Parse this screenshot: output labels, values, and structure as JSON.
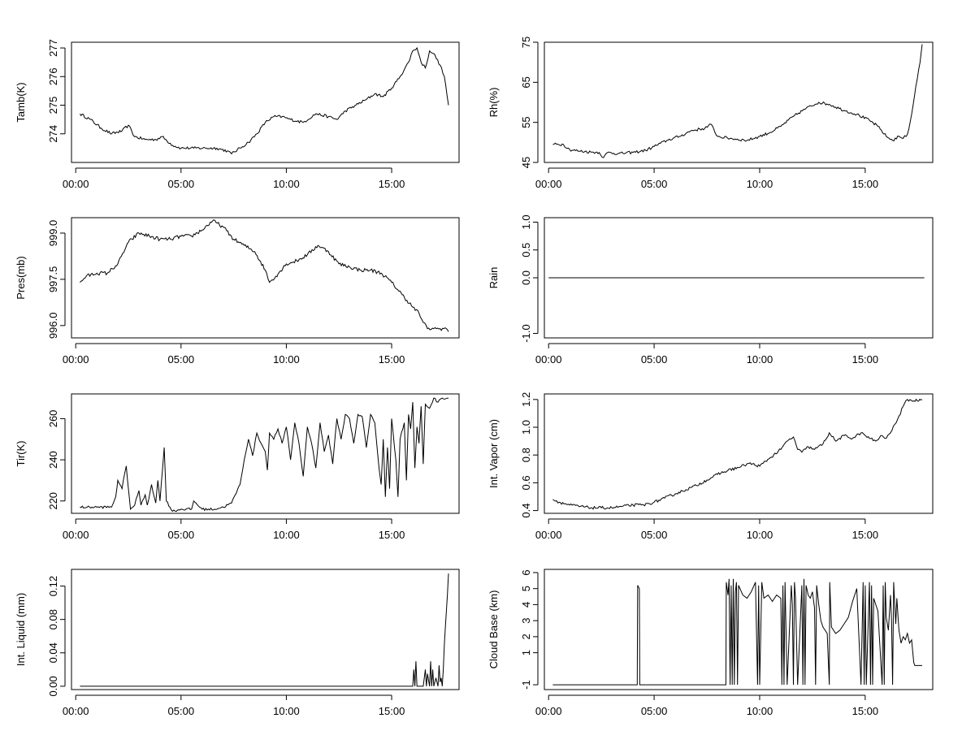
{
  "chart_data": [
    {
      "type": "line",
      "ylabel": "Tamb(K)",
      "xlabel": "",
      "x_ticks": [
        "00:00",
        "05:00",
        "10:00",
        "15:00"
      ],
      "y_ticks": [
        "274",
        "275",
        "276",
        "277"
      ],
      "xlim": [
        -0.2,
        18.2
      ],
      "ylim": [
        273.0,
        277.2
      ],
      "noise": 0.05,
      "series": [
        {
          "x": [
            0.2,
            0.7,
            1.2,
            1.7,
            2.2,
            2.5,
            2.8,
            3.3,
            3.8,
            4.1,
            4.6,
            5.0,
            5.6,
            6.2,
            6.7,
            7.2,
            7.4,
            7.8,
            8.2,
            8.6,
            9.0,
            9.4,
            9.8,
            10.2,
            10.8,
            11.4,
            12.0,
            12.4,
            12.8,
            13.3,
            13.8,
            14.2,
            14.6,
            15.0,
            15.4,
            15.8,
            16.0,
            16.2,
            16.4,
            16.6,
            16.8,
            17.0,
            17.3,
            17.5,
            17.7
          ],
          "y": [
            274.7,
            274.5,
            274.2,
            274.0,
            274.1,
            274.3,
            273.9,
            273.8,
            273.8,
            273.9,
            273.6,
            273.5,
            273.5,
            273.5,
            273.5,
            273.4,
            273.3,
            273.5,
            273.7,
            274.0,
            274.4,
            274.6,
            274.6,
            274.5,
            274.4,
            274.7,
            274.6,
            274.5,
            274.8,
            275.0,
            275.2,
            275.4,
            275.3,
            275.6,
            276.0,
            276.5,
            276.9,
            277.0,
            276.5,
            276.3,
            276.9,
            276.8,
            276.4,
            276.0,
            275.0
          ]
        }
      ]
    },
    {
      "type": "line",
      "ylabel": "Rh(%)",
      "xlabel": "",
      "x_ticks": [
        "00:00",
        "05:00",
        "10:00",
        "15:00"
      ],
      "y_ticks": [
        "45",
        "55",
        "65",
        "75"
      ],
      "xlim": [
        -0.2,
        18.2
      ],
      "ylim": [
        45,
        75
      ],
      "noise": 0.35,
      "series": [
        {
          "x": [
            0.2,
            0.7,
            1.0,
            1.5,
            2.0,
            2.4,
            2.6,
            2.8,
            3.3,
            4.0,
            4.6,
            5.0,
            5.6,
            6.2,
            6.8,
            7.4,
            7.7,
            8.0,
            8.6,
            9.4,
            10.0,
            10.5,
            11.0,
            11.6,
            12.2,
            12.8,
            13.3,
            14.0,
            14.6,
            15.2,
            15.6,
            16.0,
            16.3,
            16.6,
            16.8,
            17.0,
            17.2,
            17.4,
            17.6,
            17.7
          ],
          "y": [
            49.5,
            49.5,
            48.2,
            47.8,
            47.6,
            47.5,
            46.2,
            47.5,
            47.2,
            47.5,
            48.0,
            49.0,
            50.5,
            51.5,
            53.0,
            53.5,
            54.5,
            51.5,
            51.0,
            50.5,
            51.5,
            52.5,
            54.0,
            56.5,
            58.5,
            60.0,
            59.5,
            58.0,
            57.0,
            55.5,
            54.0,
            51.5,
            50.5,
            51.5,
            51.0,
            52.0,
            57.0,
            64.0,
            70.0,
            74.5
          ]
        }
      ]
    },
    {
      "type": "line",
      "ylabel": "Pres(mb)",
      "xlabel": "",
      "x_ticks": [
        "00:00",
        "05:00",
        "10:00",
        "15:00"
      ],
      "y_ticks": [
        "996.0",
        "997.5",
        "999.0"
      ],
      "xlim": [
        -0.2,
        18.2
      ],
      "ylim": [
        995.6,
        999.5
      ],
      "noise": 0.06,
      "series": [
        {
          "x": [
            0.2,
            0.5,
            1.0,
            1.5,
            2.0,
            2.5,
            3.0,
            3.5,
            4.0,
            4.5,
            5.0,
            5.5,
            6.0,
            6.5,
            7.0,
            7.5,
            8.0,
            8.5,
            9.0,
            9.2,
            9.5,
            10.0,
            10.5,
            11.0,
            11.5,
            12.0,
            12.5,
            13.0,
            13.5,
            14.0,
            14.5,
            15.0,
            15.5,
            16.0,
            16.3,
            16.5,
            16.7,
            17.0,
            17.3,
            17.6,
            17.7
          ],
          "y": [
            997.4,
            997.6,
            997.7,
            997.7,
            998.0,
            998.7,
            999.0,
            998.9,
            998.8,
            998.8,
            998.9,
            998.9,
            999.1,
            999.4,
            999.2,
            998.8,
            998.6,
            998.4,
            997.8,
            997.4,
            997.6,
            998.0,
            998.1,
            998.3,
            998.6,
            998.4,
            998.0,
            997.9,
            997.8,
            997.8,
            997.7,
            997.4,
            997.0,
            996.6,
            996.4,
            996.1,
            995.9,
            995.9,
            995.9,
            995.9,
            995.8
          ]
        }
      ]
    },
    {
      "type": "line",
      "ylabel": "Rain",
      "xlabel": "",
      "x_ticks": [
        "00:00",
        "05:00",
        "10:00",
        "15:00"
      ],
      "y_ticks": [
        "-1.0",
        "0.0",
        "0.5",
        "1.0"
      ],
      "xlim": [
        -0.2,
        18.2
      ],
      "ylim": [
        -1.08,
        1.08
      ],
      "noise": 0,
      "series": [
        {
          "x": [
            0.0,
            17.8
          ],
          "y": [
            0,
            0
          ]
        }
      ]
    },
    {
      "type": "line",
      "ylabel": "Tir(K)",
      "xlabel": "",
      "x_ticks": [
        "00:00",
        "05:00",
        "10:00",
        "15:00"
      ],
      "y_ticks": [
        "220",
        "240",
        "260"
      ],
      "xlim": [
        -0.2,
        18.2
      ],
      "ylim": [
        214,
        272
      ],
      "noise": 0.6,
      "series": [
        {
          "x": [
            0.2,
            1.0,
            1.7,
            1.9,
            2.0,
            2.2,
            2.4,
            2.6,
            2.8,
            3.0,
            3.1,
            3.3,
            3.4,
            3.6,
            3.8,
            3.9,
            4.0,
            4.2,
            4.3,
            4.6,
            5.0,
            5.5,
            5.6,
            6.0,
            6.6,
            7.0,
            7.4,
            7.8,
            8.0,
            8.2,
            8.4,
            8.6,
            8.8,
            9.0,
            9.1,
            9.2,
            9.4,
            9.6,
            9.8,
            10.0,
            10.2,
            10.4,
            10.6,
            10.8,
            11.0,
            11.2,
            11.4,
            11.6,
            11.8,
            12.0,
            12.2,
            12.4,
            12.6,
            12.8,
            13.0,
            13.2,
            13.4,
            13.6,
            13.8,
            14.0,
            14.2,
            14.4,
            14.5,
            14.6,
            14.7,
            14.8,
            14.9,
            15.0,
            15.2,
            15.3,
            15.4,
            15.6,
            15.7,
            15.8,
            15.9,
            16.0,
            16.1,
            16.2,
            16.3,
            16.4,
            16.5,
            16.6,
            16.8,
            17.0,
            17.2,
            17.4,
            17.7
          ],
          "y": [
            217,
            217,
            217,
            222,
            230,
            226,
            237,
            216,
            218,
            225,
            218,
            223,
            218,
            228,
            219,
            230,
            220,
            246,
            220,
            215,
            216,
            216,
            220,
            216,
            216,
            217,
            219,
            228,
            240,
            250,
            242,
            253,
            248,
            244,
            235,
            253,
            250,
            255,
            248,
            256,
            240,
            258,
            248,
            232,
            256,
            248,
            236,
            258,
            244,
            252,
            238,
            260,
            250,
            262,
            260,
            248,
            262,
            261,
            246,
            262,
            258,
            236,
            228,
            250,
            222,
            246,
            226,
            260,
            240,
            222,
            250,
            258,
            230,
            262,
            255,
            268,
            236,
            256,
            248,
            266,
            238,
            267,
            265,
            270,
            268,
            270,
            270
          ]
        }
      ]
    },
    {
      "type": "line",
      "ylabel": "Int. Vapor (cm)",
      "xlabel": "",
      "x_ticks": [
        "00:00",
        "05:00",
        "10:00",
        "15:00"
      ],
      "y_ticks": [
        "0.4",
        "0.6",
        "0.8",
        "1.0",
        "1.2"
      ],
      "xlim": [
        -0.2,
        18.2
      ],
      "ylim": [
        0.38,
        1.24
      ],
      "noise": 0.01,
      "series": [
        {
          "x": [
            0.2,
            0.5,
            1.0,
            1.5,
            2.0,
            2.5,
            3.0,
            3.5,
            4.0,
            4.5,
            5.0,
            5.5,
            6.0,
            6.5,
            7.0,
            7.5,
            8.0,
            8.5,
            9.0,
            9.5,
            10.0,
            10.5,
            11.0,
            11.3,
            11.6,
            11.8,
            12.0,
            12.3,
            12.6,
            13.0,
            13.3,
            13.6,
            14.0,
            14.4,
            14.8,
            15.2,
            15.5,
            15.8,
            16.0,
            16.2,
            16.4,
            16.6,
            16.8,
            17.0,
            17.3,
            17.7
          ],
          "y": [
            0.48,
            0.46,
            0.44,
            0.43,
            0.42,
            0.42,
            0.42,
            0.43,
            0.44,
            0.44,
            0.46,
            0.49,
            0.52,
            0.55,
            0.58,
            0.62,
            0.66,
            0.69,
            0.71,
            0.74,
            0.72,
            0.78,
            0.84,
            0.9,
            0.93,
            0.84,
            0.82,
            0.86,
            0.84,
            0.88,
            0.96,
            0.9,
            0.94,
            0.92,
            0.96,
            0.92,
            0.9,
            0.94,
            0.92,
            0.96,
            1.02,
            1.08,
            1.15,
            1.2,
            1.19,
            1.2
          ]
        }
      ]
    },
    {
      "type": "line",
      "ylabel": "Int. Liquid (mm)",
      "xlabel": "",
      "x_ticks": [
        "00:00",
        "05:00",
        "10:00",
        "15:00"
      ],
      "y_ticks": [
        "0.00",
        "0.04",
        "0.08",
        "0.12"
      ],
      "xlim": [
        -0.2,
        18.2
      ],
      "ylim": [
        -0.004,
        0.14
      ],
      "noise": 0,
      "series": [
        {
          "x": [
            0.2,
            16.0,
            16.05,
            16.1,
            16.15,
            16.2,
            16.5,
            16.6,
            16.65,
            16.7,
            16.8,
            16.85,
            16.9,
            16.95,
            17.0,
            17.1,
            17.2,
            17.25,
            17.3,
            17.35,
            17.4,
            17.45,
            17.5,
            17.55,
            17.6,
            17.65,
            17.7
          ],
          "y": [
            0,
            0,
            0.02,
            0.0,
            0.03,
            0,
            0,
            0.02,
            0,
            0.015,
            0,
            0.03,
            0,
            0.02,
            0,
            0.01,
            0,
            0.025,
            0.005,
            0.01,
            0.0,
            0.02,
            0.05,
            0.07,
            0.09,
            0.11,
            0.135
          ]
        }
      ]
    },
    {
      "type": "line",
      "ylabel": "Cloud Base (km)",
      "xlabel": "",
      "x_ticks": [
        "00:00",
        "05:00",
        "10:00",
        "15:00"
      ],
      "y_ticks": [
        "-1",
        "1",
        "2",
        "3",
        "4",
        "5",
        "6"
      ],
      "xlim": [
        -0.2,
        18.2
      ],
      "ylim": [
        -1.3,
        6.2
      ],
      "noise": 0,
      "series": [
        {
          "x": [
            0.2,
            4.2,
            4.22,
            4.3,
            4.32,
            8.4,
            8.42,
            8.5,
            8.55,
            8.6,
            8.65,
            8.7,
            8.75,
            8.8,
            8.85,
            8.9,
            8.95,
            9.0,
            9.2,
            9.4,
            9.6,
            9.8,
            9.9,
            9.95,
            10.0,
            10.1,
            10.2,
            10.4,
            10.6,
            10.8,
            11.0,
            11.05,
            11.1,
            11.15,
            11.2,
            11.3,
            11.5,
            11.55,
            11.6,
            11.65,
            11.7,
            11.8,
            12.0,
            12.05,
            12.1,
            12.15,
            12.2,
            12.3,
            12.4,
            12.5,
            12.6,
            12.65,
            12.7,
            12.8,
            12.9,
            13.0,
            13.2,
            13.3,
            13.32,
            13.4,
            13.6,
            13.8,
            14.0,
            14.2,
            14.4,
            14.6,
            14.8,
            14.9,
            14.95,
            15.0,
            15.05,
            15.2,
            15.25,
            15.3,
            15.35,
            15.4,
            15.6,
            15.8,
            15.85,
            15.9,
            15.95,
            16.0,
            16.1,
            16.2,
            16.25,
            16.3,
            16.35,
            16.4,
            16.45,
            16.5,
            16.6,
            16.7,
            16.8,
            16.9,
            17.0,
            17.1,
            17.2,
            17.3,
            17.35,
            17.5,
            17.7
          ],
          "y": [
            -1,
            -1,
            5.2,
            5.0,
            -1,
            -1,
            5.4,
            4.6,
            5.6,
            -1,
            5.2,
            -1,
            5.6,
            -1,
            4.8,
            5.4,
            -1,
            5.2,
            4.6,
            4.4,
            4.8,
            5.4,
            -1,
            5.2,
            -1,
            5.4,
            4.4,
            4.6,
            4.2,
            4.6,
            4.4,
            -1,
            5.2,
            -1,
            5.4,
            -1,
            5.2,
            4.0,
            -1,
            5.4,
            4.4,
            -1,
            5.2,
            -1,
            5.6,
            -1,
            5.2,
            4.6,
            4.4,
            4.8,
            3.8,
            -1,
            5.2,
            4.0,
            3.0,
            2.6,
            2.2,
            -1,
            5.4,
            2.6,
            2.2,
            2.4,
            2.8,
            3.2,
            4.2,
            5.0,
            -1,
            5.4,
            -1,
            5.2,
            -1,
            5.4,
            -1,
            5.2,
            -1,
            4.4,
            3.6,
            -1,
            5.2,
            -1,
            5.4,
            3.2,
            2.4,
            4.6,
            3.0,
            -1,
            5.4,
            4.0,
            2.8,
            4.4,
            2.4,
            1.6,
            2.0,
            1.8,
            2.2,
            1.6,
            1.8,
            0.4,
            0.2,
            0.2,
            0.2
          ]
        }
      ]
    }
  ]
}
